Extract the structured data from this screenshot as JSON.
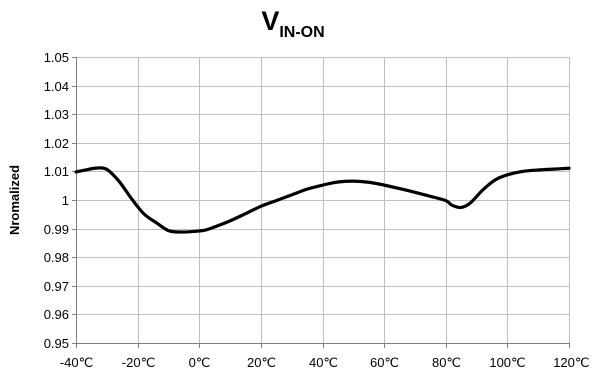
{
  "chart_data": {
    "type": "line",
    "title": {
      "main": "V",
      "subscript": "IN-ON"
    },
    "xlabel": "",
    "ylabel": "Nromalized",
    "xlim": [
      -40,
      120
    ],
    "ylim": [
      0.95,
      1.05
    ],
    "grid": true,
    "x_ticks": [
      -40,
      -20,
      0,
      20,
      40,
      60,
      80,
      100,
      120
    ],
    "x_tick_labels": [
      "-40℃",
      "-20℃",
      "0℃",
      "20℃",
      "40℃",
      "60℃",
      "80℃",
      "100℃",
      "120℃"
    ],
    "y_ticks": [
      0.95,
      0.96,
      0.97,
      0.98,
      0.99,
      1.0,
      1.01,
      1.02,
      1.03,
      1.04,
      1.05
    ],
    "y_tick_labels": [
      "0.95",
      "0.96",
      "0.97",
      "0.98",
      "0.99",
      "1",
      "1.01",
      "1.02",
      "1.03",
      "1.04",
      "1.05"
    ],
    "series": [
      {
        "color": "#000000",
        "x": [
          -40,
          -36,
          -33,
          -30,
          -26,
          -22,
          -18,
          -14,
          -10,
          -6,
          -2,
          2,
          6,
          10,
          15,
          20,
          25,
          30,
          35,
          40,
          45,
          50,
          55,
          60,
          65,
          70,
          75,
          80,
          82,
          85,
          88,
          92,
          96,
          100,
          105,
          110,
          115,
          120
        ],
        "y": [
          1.0098,
          1.0107,
          1.0112,
          1.0107,
          1.0065,
          1.0005,
          0.9952,
          0.9921,
          0.9893,
          0.9888,
          0.989,
          0.9895,
          0.991,
          0.9927,
          0.9952,
          0.9978,
          0.9998,
          1.0018,
          1.0038,
          1.0052,
          1.0063,
          1.0066,
          1.0062,
          1.0052,
          1.004,
          1.0027,
          1.0013,
          0.9998,
          0.9982,
          0.9974,
          0.999,
          1.0035,
          1.007,
          1.0088,
          1.01,
          1.0105,
          1.0108,
          1.0111
        ]
      }
    ]
  }
}
